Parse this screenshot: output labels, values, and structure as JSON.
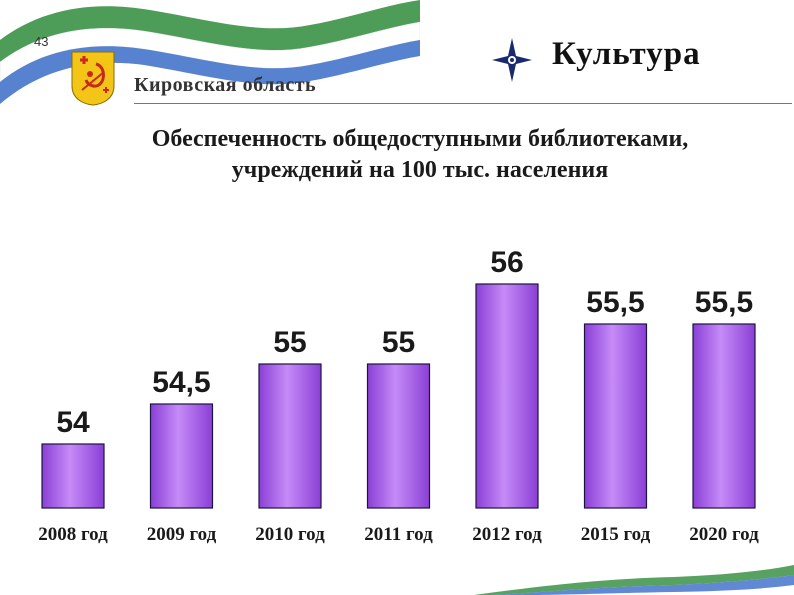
{
  "slide": {
    "number": "43"
  },
  "header": {
    "region": "Кировская область",
    "section": "Культура"
  },
  "colors": {
    "bar_fill_light": "#c68bf7",
    "bar_fill_dark": "#8a3fd6",
    "bar_stroke": "#1c1440",
    "ribbon_green": "#2e8b3a",
    "ribbon_blue": "#3a6cc8",
    "coat_yellow": "#f2c516",
    "coat_red": "#c8281e"
  },
  "chart_data": {
    "type": "bar",
    "title": [
      "Обеспеченность общедоступными библиотеками,",
      "учреждений на 100 тыс. населения"
    ],
    "categories": [
      "2008 год",
      "2009 год",
      "2010 год",
      "2011 год",
      "2012 год",
      "2015 год",
      "2020 год"
    ],
    "values": [
      54,
      54.5,
      55,
      55,
      56,
      55.5,
      55.5
    ],
    "value_labels": [
      "54",
      "54,5",
      "55",
      "55",
      "56",
      "55,5",
      "55,5"
    ],
    "ylim": [
      53.2,
      56.2
    ],
    "xlabel": "",
    "ylabel": "",
    "grid": false,
    "legend": "none"
  }
}
